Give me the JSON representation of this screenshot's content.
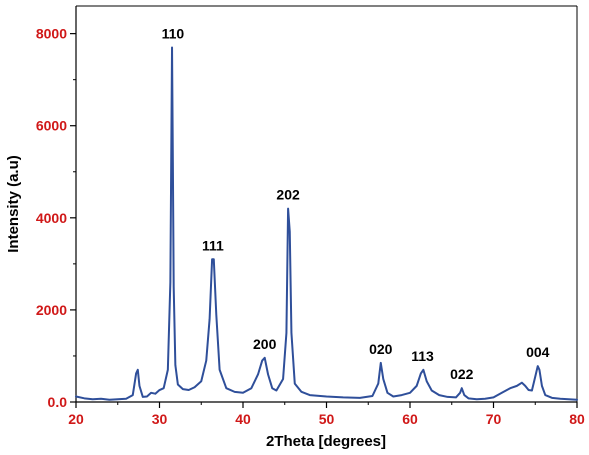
{
  "colors": {
    "series_line": "#2f4f9a",
    "tick_label_red": "#d01818",
    "axis": "#000000",
    "text": "#000000"
  },
  "chart_data": {
    "type": "line",
    "title": "",
    "xlabel": "2Theta [degrees]",
    "ylabel": "Intensity (a.u)",
    "xlim": [
      20,
      80
    ],
    "ylim": [
      0,
      8600
    ],
    "x_ticks": [
      20,
      30,
      40,
      50,
      60,
      70,
      80
    ],
    "y_ticks": [
      0,
      2000,
      4000,
      6000,
      8000
    ],
    "x_tick_labels": [
      "20",
      "30",
      "40",
      "50",
      "60",
      "70",
      "80"
    ],
    "y_tick_labels": [
      "0.0",
      "2000",
      "4000",
      "6000",
      "8000"
    ],
    "grid": false,
    "legend": "none",
    "series": [
      {
        "x": [
          20.0,
          21.0,
          22.0,
          23.0,
          24.0,
          25.0,
          26.0,
          26.8,
          27.2,
          27.4,
          27.6,
          28.0,
          28.5,
          29.0,
          29.5,
          30.0,
          30.5,
          31.0,
          31.3,
          31.5,
          31.6,
          31.7,
          31.9,
          32.2,
          32.8,
          33.5,
          34.2,
          35.0,
          35.6,
          36.0,
          36.3,
          36.5,
          36.8,
          37.2,
          38.0,
          39.0,
          40.0,
          41.0,
          41.8,
          42.3,
          42.6,
          43.0,
          43.5,
          44.0,
          44.8,
          45.2,
          45.4,
          45.6,
          45.8,
          46.2,
          47.0,
          48.0,
          50.0,
          52.0,
          54.0,
          55.5,
          56.2,
          56.5,
          56.8,
          57.3,
          58.0,
          59.0,
          60.0,
          60.8,
          61.3,
          61.6,
          62.0,
          62.6,
          63.5,
          64.5,
          65.5,
          66.0,
          66.2,
          66.5,
          67.0,
          68.0,
          69.0,
          70.0,
          71.0,
          72.0,
          72.8,
          73.4,
          73.8,
          74.2,
          74.6,
          75.0,
          75.3,
          75.5,
          75.8,
          76.2,
          77.0,
          78.0,
          79.0,
          80.0
        ],
        "y": [
          120,
          80,
          60,
          70,
          50,
          60,
          70,
          150,
          620,
          700,
          350,
          110,
          120,
          200,
          180,
          260,
          300,
          700,
          2600,
          7700,
          5200,
          2500,
          800,
          380,
          280,
          260,
          320,
          450,
          900,
          1800,
          3100,
          3100,
          1900,
          700,
          300,
          220,
          200,
          300,
          600,
          900,
          960,
          600,
          300,
          250,
          500,
          1500,
          4200,
          3700,
          1500,
          400,
          220,
          150,
          120,
          100,
          90,
          130,
          400,
          850,
          500,
          200,
          120,
          150,
          200,
          350,
          620,
          700,
          450,
          250,
          150,
          110,
          100,
          200,
          300,
          150,
          80,
          60,
          70,
          100,
          200,
          300,
          350,
          420,
          350,
          260,
          250,
          550,
          780,
          700,
          350,
          150,
          90,
          70,
          60,
          50
        ]
      }
    ],
    "annotations": [
      {
        "x": 31.6,
        "y": 7700,
        "label": "110"
      },
      {
        "x": 36.4,
        "y": 3100,
        "label": "111"
      },
      {
        "x": 42.6,
        "y": 960,
        "label": "200"
      },
      {
        "x": 45.4,
        "y": 4200,
        "label": "202"
      },
      {
        "x": 56.5,
        "y": 850,
        "label": "020"
      },
      {
        "x": 61.5,
        "y": 700,
        "label": "113"
      },
      {
        "x": 66.2,
        "y": 300,
        "label": "022"
      },
      {
        "x": 75.3,
        "y": 780,
        "label": "004"
      }
    ]
  }
}
